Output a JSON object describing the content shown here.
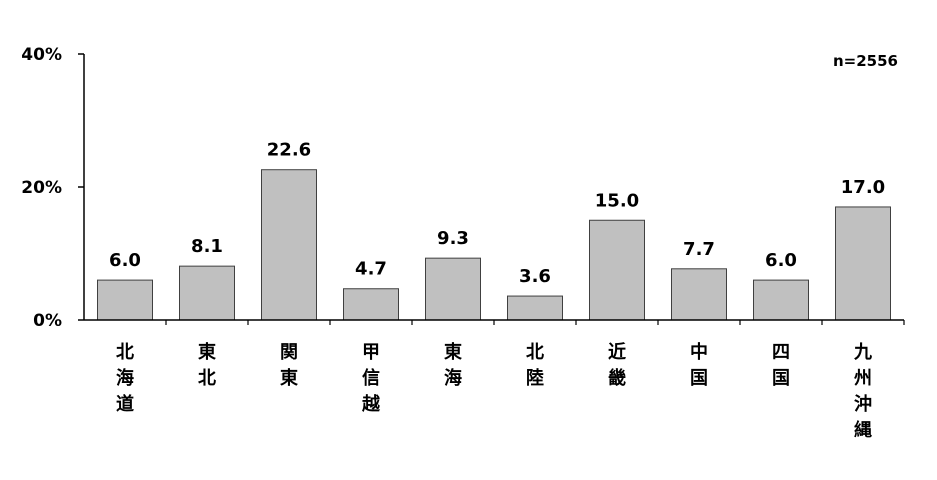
{
  "chart_data": {
    "type": "bar",
    "categories": [
      "北海道",
      "東北",
      "関東",
      "甲信越",
      "東海",
      "北陸",
      "近畿",
      "中国",
      "四国",
      "九州沖縄"
    ],
    "values": [
      6.0,
      8.1,
      22.6,
      4.7,
      9.3,
      3.6,
      15.0,
      7.7,
      6.0,
      17.0
    ],
    "data_labels": [
      "6.0",
      "8.1",
      "22.6",
      "4.7",
      "9.3",
      "3.6",
      "15.0",
      "7.7",
      "6.0",
      "17.0"
    ],
    "title": "",
    "xlabel": "",
    "ylabel": "",
    "ylim": [
      0,
      40
    ],
    "yticks": [
      0,
      20,
      40
    ],
    "ytick_labels": [
      "0%",
      "20%",
      "40%"
    ],
    "annotation": "n=2556",
    "grid": false,
    "bar_color": "#c0c0c0",
    "bar_edge_color": "#404040"
  }
}
